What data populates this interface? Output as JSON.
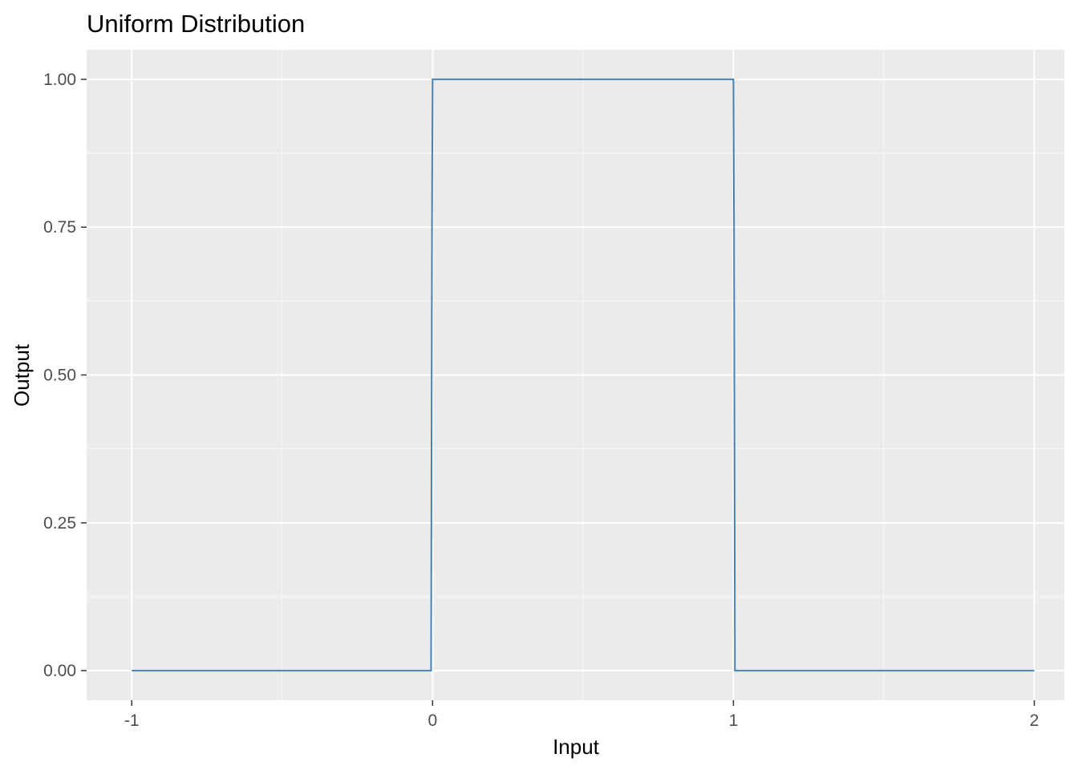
{
  "chart_data": {
    "type": "line",
    "title": "Uniform Distribution",
    "xlabel": "Input",
    "ylabel": "Output",
    "xlim": [
      -1.15,
      2.1
    ],
    "ylim": [
      -0.05,
      1.05
    ],
    "x_ticks": [
      -1,
      0,
      1,
      2
    ],
    "x_tick_labels": [
      "-1",
      "0",
      "1",
      "2"
    ],
    "y_ticks": [
      0,
      0.25,
      0.5,
      0.75,
      1
    ],
    "y_tick_labels": [
      "0.00",
      "0.25",
      "0.50",
      "0.75",
      "1.00"
    ],
    "grid": true,
    "legend": "none",
    "series": [
      {
        "color": "#4682b4",
        "x": [
          -1,
          -0.005,
          -0.004,
          -0.003,
          -0.002,
          0,
          1,
          1.002,
          1.003,
          1.004,
          1.005,
          2
        ],
        "y": [
          0,
          0,
          0.25,
          0.5,
          0.75,
          1,
          1,
          0.75,
          0.5,
          0.25,
          0,
          0
        ]
      }
    ],
    "colors": {
      "panel_background": "#ebebeb",
      "grid_major": "#ffffff",
      "grid_minor": "#f5f5f5",
      "tick_text": "#4d4d4d",
      "tick_mark": "#333333",
      "line": "#4682b4"
    }
  }
}
